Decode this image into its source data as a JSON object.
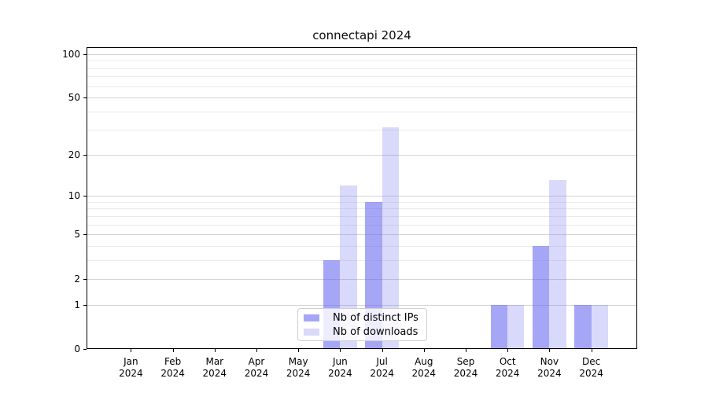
{
  "title": "connectapi 2024",
  "chart_data": {
    "type": "bar",
    "title": "connectapi 2024",
    "categories": [
      "Jan",
      "Feb",
      "Mar",
      "Apr",
      "May",
      "Jun",
      "Jul",
      "Aug",
      "Sep",
      "Oct",
      "Nov",
      "Dec"
    ],
    "category_year": "2024",
    "series": [
      {
        "name": "Nb of distinct IPs",
        "color": "rgba(102,102,240,0.58)",
        "values": [
          0,
          0,
          0,
          0,
          0,
          3,
          9,
          0,
          0,
          1,
          4,
          1
        ]
      },
      {
        "name": "Nb of downloads",
        "color": "rgba(102,102,240,0.25)",
        "values": [
          0,
          0,
          0,
          0,
          0,
          12,
          31,
          0,
          0,
          1,
          13,
          1
        ]
      }
    ],
    "xlabel": "",
    "ylabel": "",
    "y_scale": "log1p",
    "y_ticks": [
      0,
      1,
      2,
      5,
      10,
      20,
      50,
      100
    ],
    "y_minor_ticks": [
      3,
      4,
      6,
      7,
      8,
      9,
      30,
      40,
      60,
      70,
      80,
      90
    ],
    "ylim": [
      0,
      111.5
    ],
    "grid": true,
    "legend_position": "lower center inside"
  },
  "legend": {
    "items": [
      {
        "label": "Nb of distinct IPs",
        "color": "rgba(102,102,240,0.58)"
      },
      {
        "label": "Nb of downloads",
        "color": "rgba(102,102,240,0.25)"
      }
    ]
  },
  "colors": {
    "axis": "#000000",
    "grid_major": "#d4d4d4",
    "grid_minor": "#ebebeb",
    "text": "#000000",
    "accent": "#6666f0"
  }
}
